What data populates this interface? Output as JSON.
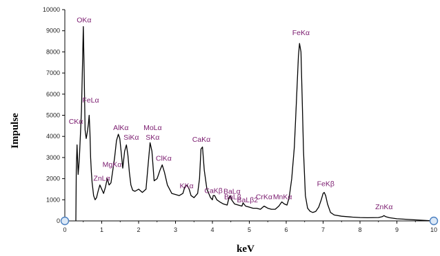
{
  "chart_data": {
    "type": "line",
    "title": "",
    "xlabel": "keV",
    "ylabel": "Impulse",
    "xlim": [
      0,
      10
    ],
    "ylim": [
      0,
      10000
    ],
    "x_ticks": [
      0,
      1,
      2,
      3,
      4,
      5,
      6,
      7,
      8,
      9,
      10
    ],
    "y_ticks": [
      0,
      1000,
      2000,
      3000,
      4000,
      5000,
      6000,
      7000,
      8000,
      9000,
      10000
    ],
    "grid": false,
    "legend": "none",
    "colors": {
      "line": "#000000",
      "label": "#7a1a6e",
      "handle_fill": "#dce9f7",
      "handle_stroke": "#4a7fc0"
    },
    "series": [
      {
        "x": [
          0.3,
          0.31,
          0.33,
          0.36,
          0.38,
          0.4,
          0.42,
          0.45,
          0.48,
          0.5,
          0.52,
          0.55,
          0.58,
          0.61,
          0.64,
          0.66,
          0.68,
          0.7,
          0.72,
          0.74,
          0.76,
          0.78,
          0.82,
          0.86,
          0.9,
          0.95,
          1.0,
          1.05,
          1.1,
          1.15,
          1.2,
          1.25,
          1.3,
          1.35,
          1.4,
          1.45,
          1.49,
          1.53,
          1.57,
          1.62,
          1.67,
          1.71,
          1.75,
          1.79,
          1.84,
          1.9,
          2.0,
          2.1,
          2.2,
          2.26,
          2.31,
          2.36,
          2.42,
          2.5,
          2.58,
          2.64,
          2.7,
          2.78,
          2.9,
          3.0,
          3.1,
          3.2,
          3.25,
          3.31,
          3.37,
          3.42,
          3.5,
          3.6,
          3.65,
          3.69,
          3.73,
          3.78,
          3.85,
          3.95,
          4.0,
          4.02,
          4.06,
          4.12,
          4.2,
          4.3,
          4.4,
          4.45,
          4.48,
          4.52,
          4.6,
          4.7,
          4.8,
          4.83,
          4.9,
          5.0,
          5.1,
          5.2,
          5.3,
          5.4,
          5.5,
          5.6,
          5.7,
          5.8,
          5.88,
          5.95,
          6.02,
          6.08,
          6.15,
          6.22,
          6.28,
          6.33,
          6.36,
          6.4,
          6.43,
          6.47,
          6.52,
          6.58,
          6.65,
          6.72,
          6.8,
          6.88,
          6.95,
          7.0,
          7.03,
          7.07,
          7.12,
          7.2,
          7.3,
          7.5,
          7.8,
          8.0,
          8.2,
          8.5,
          8.6,
          8.65,
          8.7,
          8.8,
          9.0,
          9.2,
          9.5,
          9.8,
          10.0
        ],
        "y": [
          0,
          2400,
          3600,
          2200,
          2600,
          3200,
          4000,
          5200,
          7500,
          9200,
          7500,
          4300,
          3900,
          4200,
          4600,
          5000,
          4200,
          3000,
          2300,
          1800,
          1500,
          1200,
          1000,
          1100,
          1400,
          1700,
          1500,
          1300,
          1600,
          2000,
          1700,
          1800,
          2400,
          3000,
          3800,
          4100,
          3900,
          3200,
          2500,
          3300,
          3600,
          3100,
          2300,
          1700,
          1450,
          1400,
          1500,
          1350,
          1500,
          2700,
          3700,
          3300,
          1900,
          2000,
          2400,
          2650,
          2300,
          1700,
          1300,
          1250,
          1200,
          1300,
          1600,
          1700,
          1500,
          1200,
          1100,
          1300,
          2000,
          3400,
          3500,
          2400,
          1500,
          1100,
          1000,
          1200,
          1200,
          1000,
          900,
          800,
          750,
          1100,
          1200,
          1000,
          800,
          750,
          700,
          850,
          700,
          650,
          600,
          600,
          550,
          700,
          600,
          550,
          550,
          700,
          900,
          800,
          750,
          1100,
          2000,
          3500,
          5800,
          7800,
          8400,
          8000,
          6000,
          3300,
          1200,
          600,
          450,
          400,
          450,
          650,
          1000,
          1300,
          1350,
          1200,
          800,
          400,
          280,
          220,
          180,
          160,
          150,
          160,
          200,
          250,
          200,
          150,
          100,
          80,
          50,
          20,
          0
        ]
      }
    ],
    "annotations": [
      {
        "text": "OKα",
        "x": 0.52,
        "y": 9400
      },
      {
        "text": "FeLα",
        "x": 0.7,
        "y": 5600
      },
      {
        "text": "CKα",
        "x": 0.3,
        "y": 4600
      },
      {
        "text": "AlKα",
        "x": 1.52,
        "y": 4300
      },
      {
        "text": "MoLα",
        "x": 2.38,
        "y": 4300
      },
      {
        "text": "SiKα",
        "x": 1.8,
        "y": 3850
      },
      {
        "text": "SKα",
        "x": 2.38,
        "y": 3850
      },
      {
        "text": "CaKα",
        "x": 3.7,
        "y": 3750
      },
      {
        "text": "MgKα",
        "x": 1.28,
        "y": 2550
      },
      {
        "text": "ClKα",
        "x": 2.68,
        "y": 2850
      },
      {
        "text": "ZnLα",
        "x": 1.0,
        "y": 1900
      },
      {
        "text": "KKα",
        "x": 3.3,
        "y": 1550
      },
      {
        "text": "CaKβ",
        "x": 4.03,
        "y": 1320
      },
      {
        "text": "BaLα",
        "x": 4.53,
        "y": 1280
      },
      {
        "text": "BaLβ",
        "x": 4.55,
        "y": 1020
      },
      {
        "text": "BaLβ2",
        "x": 4.95,
        "y": 880
      },
      {
        "text": "CrKα",
        "x": 5.4,
        "y": 1030
      },
      {
        "text": "MnKα",
        "x": 5.9,
        "y": 1030
      },
      {
        "text": "FeKα",
        "x": 6.4,
        "y": 8800
      },
      {
        "text": "FeKβ",
        "x": 7.07,
        "y": 1650
      },
      {
        "text": "ZnKα",
        "x": 8.65,
        "y": 560
      }
    ]
  }
}
